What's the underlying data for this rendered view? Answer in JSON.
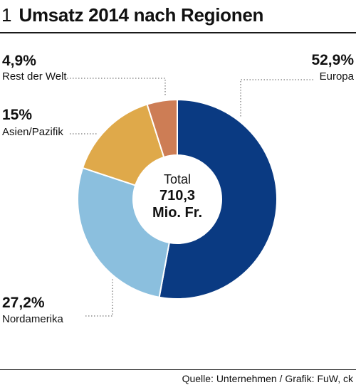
{
  "header": {
    "number": "1",
    "title": "Umsatz 2014 nach Regionen"
  },
  "footer": {
    "source": "Quelle: Unternehmen / Grafik: FuW, ck"
  },
  "chart_data": {
    "type": "pie",
    "title": "Umsatz 2014 nach Regionen",
    "center_label": {
      "line1": "Total",
      "line2": "710,3",
      "line3": "Mio. Fr."
    },
    "slices": [
      {
        "name": "Europa",
        "value": 52.9,
        "label": "52,9%",
        "color": "#0a3a82"
      },
      {
        "name": "Nordamerika",
        "value": 27.2,
        "label": "27,2%",
        "color": "#8bbfde"
      },
      {
        "name": "Asien/Pazifik",
        "value": 15.0,
        "label": "15%",
        "color": "#dfa94a"
      },
      {
        "name": "Rest der Welt",
        "value": 4.9,
        "label": "4,9%",
        "color": "#cd7d55"
      }
    ]
  }
}
